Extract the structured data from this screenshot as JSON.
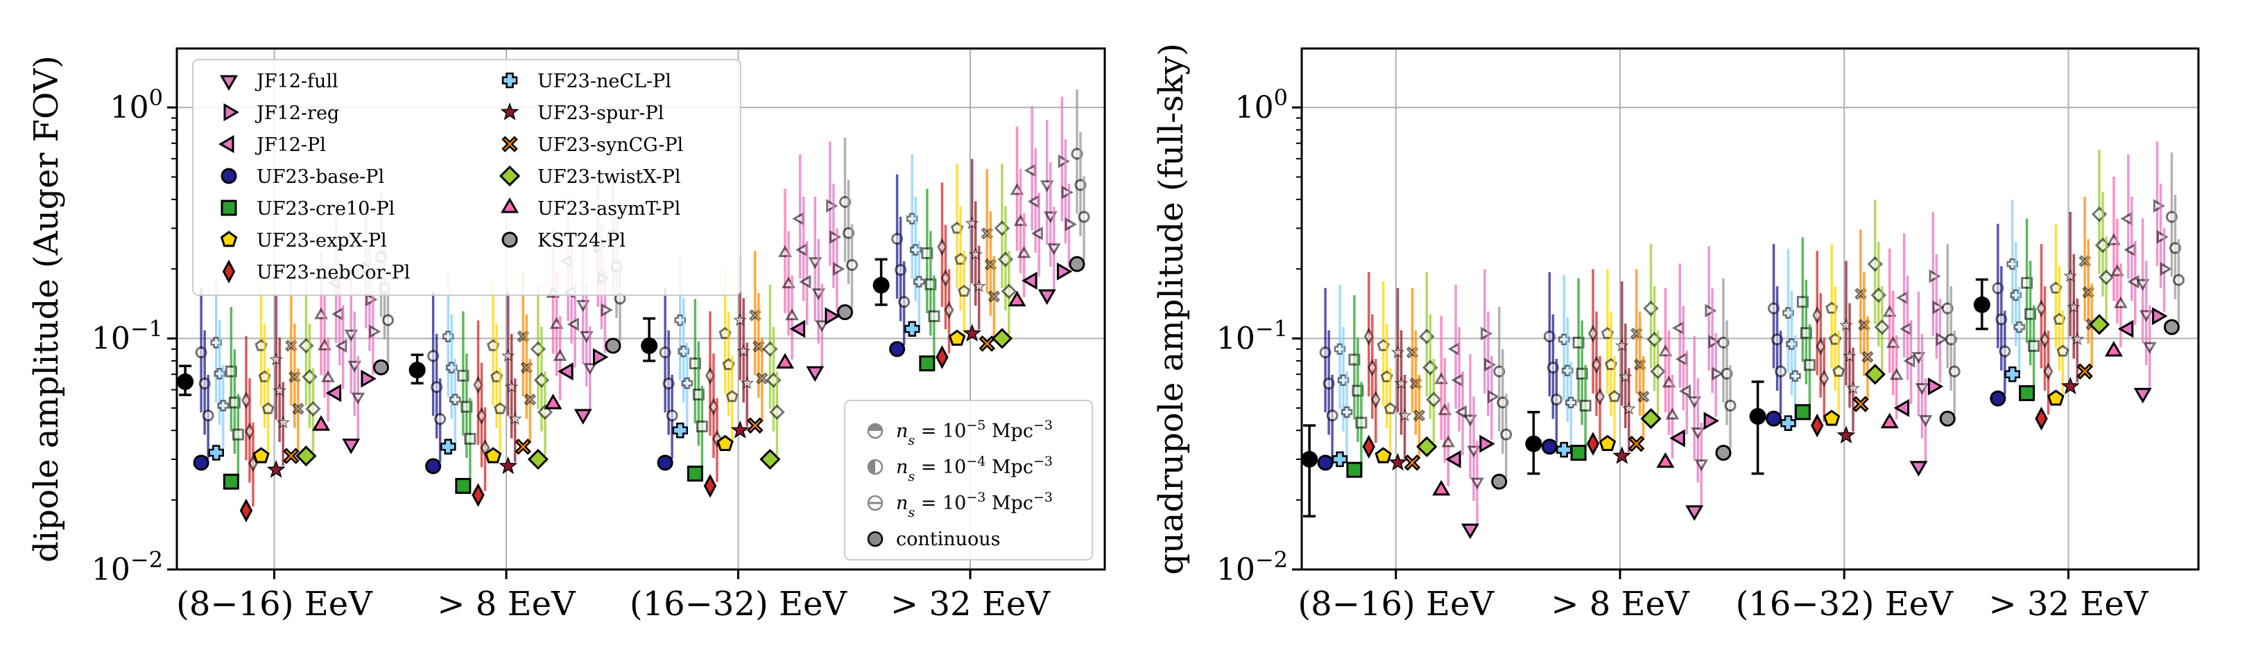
{
  "chart_data": [
    {
      "type": "scatter",
      "title": "",
      "ylabel": "dipole amplitude (Auger FOV)",
      "xlabel": "",
      "yscale": "log",
      "ylim": [
        0.01,
        1.8
      ],
      "yticks": [
        "10^{-2}",
        "10^{-1}",
        "10^{0}"
      ],
      "categories": [
        "(8−16) EeV",
        "> 8 EeV",
        "(16−32) EeV",
        "> 32 EeV"
      ],
      "data_marker": {
        "name": "Auger data",
        "values": [
          0.065,
          0.073,
          0.093,
          0.17
        ],
        "err_low": [
          0.057,
          0.064,
          0.08,
          0.14
        ],
        "err_high": [
          0.076,
          0.085,
          0.122,
          0.22
        ]
      },
      "legend": {
        "position": "upper-left",
        "entries": [
          "JF12-full",
          "JF12-reg",
          "JF12-Pl",
          "UF23-base-Pl",
          "UF23-cre10-Pl",
          "UF23-expX-Pl",
          "UF23-nebCor-Pl",
          "UF23-neCL-Pl",
          "UF23-spur-Pl",
          "UF23-synCG-Pl",
          "UF23-twistX-Pl",
          "UF23-asymT-Pl",
          "KST24-Pl"
        ]
      },
      "density_legend": {
        "position": "lower-right",
        "entries": [
          "n_s = 10^{-5} Mpc^{-3}",
          "n_s = 10^{-4} Mpc^{-3}",
          "n_s = 10^{-3} Mpc^{-3}",
          "continuous"
        ]
      },
      "continuous": {
        "JF12-full": [
          0.035,
          0.047,
          0.072,
          0.155
        ],
        "JF12-reg": [
          0.067,
          0.083,
          0.125,
          0.195
        ],
        "JF12-Pl": [
          0.058,
          0.072,
          0.11,
          0.178
        ],
        "UF23-base-Pl": [
          0.029,
          0.028,
          0.029,
          0.09
        ],
        "UF23-cre10-Pl": [
          0.024,
          0.023,
          0.026,
          0.078
        ],
        "UF23-expX-Pl": [
          0.031,
          0.031,
          0.035,
          0.1
        ],
        "UF23-nebCor-Pl": [
          0.018,
          0.021,
          0.023,
          0.083
        ],
        "UF23-neCL-Pl": [
          0.032,
          0.034,
          0.04,
          0.11
        ],
        "UF23-spur-Pl": [
          0.027,
          0.028,
          0.04,
          0.105
        ],
        "UF23-synCG-Pl": [
          0.031,
          0.034,
          0.042,
          0.095
        ],
        "UF23-twistX-Pl": [
          0.031,
          0.03,
          0.03,
          0.1
        ],
        "UF23-asymT-Pl": [
          0.042,
          0.052,
          0.078,
          0.145
        ],
        "KST24-Pl": [
          0.075,
          0.093,
          0.13,
          0.21
        ]
      }
    },
    {
      "type": "scatter",
      "title": "",
      "ylabel": "quadrupole amplitude (full-sky)",
      "xlabel": "",
      "yscale": "log",
      "ylim": [
        0.01,
        1.8
      ],
      "yticks": [
        "10^{-2}",
        "10^{-1}",
        "10^{0}"
      ],
      "categories": [
        "(8−16) EeV",
        "> 8 EeV",
        "(16−32) EeV",
        "> 32 EeV"
      ],
      "data_marker": {
        "name": "Auger data",
        "values": [
          0.03,
          0.035,
          0.046,
          0.14
        ],
        "err_low": [
          0.017,
          0.026,
          0.026,
          0.11
        ],
        "err_high": [
          0.042,
          0.048,
          0.065,
          0.18
        ]
      },
      "continuous": {
        "JF12-full": [
          0.015,
          0.018,
          0.028,
          0.058
        ],
        "JF12-reg": [
          0.035,
          0.044,
          0.062,
          0.125
        ],
        "JF12-Pl": [
          0.03,
          0.037,
          0.05,
          0.11
        ],
        "UF23-base-Pl": [
          0.029,
          0.034,
          0.045,
          0.055
        ],
        "UF23-cre10-Pl": [
          0.027,
          0.032,
          0.048,
          0.058
        ],
        "UF23-expX-Pl": [
          0.031,
          0.035,
          0.045,
          0.055
        ],
        "UF23-nebCor-Pl": [
          0.034,
          0.035,
          0.042,
          0.045
        ],
        "UF23-neCL-Pl": [
          0.03,
          0.033,
          0.043,
          0.07
        ],
        "UF23-spur-Pl": [
          0.029,
          0.031,
          0.038,
          0.062
        ],
        "UF23-synCG-Pl": [
          0.029,
          0.035,
          0.052,
          0.072
        ],
        "UF23-twistX-Pl": [
          0.034,
          0.045,
          0.07,
          0.115
        ],
        "UF23-asymT-Pl": [
          0.022,
          0.029,
          0.043,
          0.088
        ],
        "KST24-Pl": [
          0.024,
          0.032,
          0.045,
          0.112
        ]
      }
    }
  ]
}
